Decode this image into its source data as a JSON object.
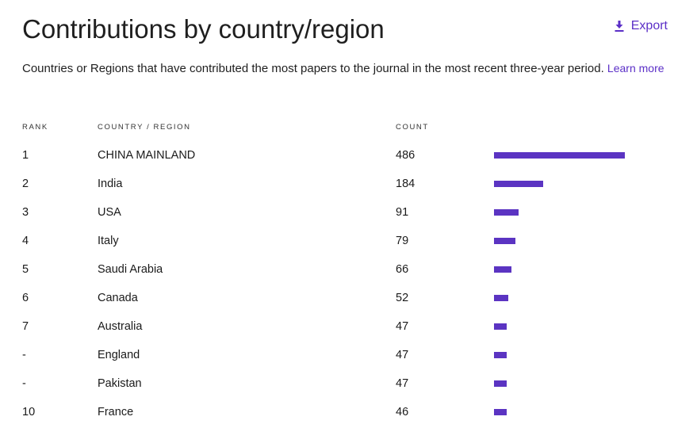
{
  "header": {
    "title": "Contributions by country/region",
    "export_label": "Export"
  },
  "description": {
    "text": "Countries or Regions that have contributed the most papers to the journal in the most recent three-year period.",
    "learn_more": "Learn more"
  },
  "table": {
    "columns": {
      "rank": "RANK",
      "country": "COUNTRY / REGION",
      "count": "COUNT"
    },
    "max_count": 486,
    "rows": [
      {
        "rank": "1",
        "country": "CHINA MAINLAND",
        "count": "486"
      },
      {
        "rank": "2",
        "country": "India",
        "count": "184"
      },
      {
        "rank": "3",
        "country": "USA",
        "count": "91"
      },
      {
        "rank": "4",
        "country": "Italy",
        "count": "79"
      },
      {
        "rank": "5",
        "country": "Saudi Arabia",
        "count": "66"
      },
      {
        "rank": "6",
        "country": "Canada",
        "count": "52"
      },
      {
        "rank": "7",
        "country": "Australia",
        "count": "47"
      },
      {
        "rank": "-",
        "country": "England",
        "count": "47"
      },
      {
        "rank": "-",
        "country": "Pakistan",
        "count": "47"
      },
      {
        "rank": "10",
        "country": "France",
        "count": "46"
      }
    ]
  },
  "colors": {
    "accent": "#5b2fc7",
    "bar": "#5b34c2"
  }
}
